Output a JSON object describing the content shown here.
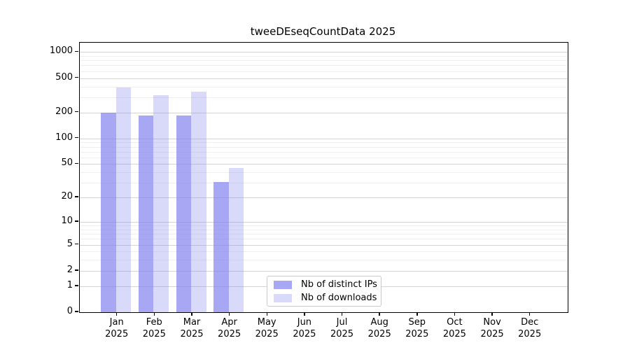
{
  "chart_data": {
    "type": "bar",
    "title": "tweeDEseqCountData 2025",
    "xlabel": "",
    "ylabel": "",
    "categories": [
      "Jan",
      "Feb",
      "Mar",
      "Apr",
      "May",
      "Jun",
      "Jul",
      "Aug",
      "Sep",
      "Oct",
      "Nov",
      "Dec"
    ],
    "x_tick_second_line": "2025",
    "series": [
      {
        "name": "Nb of distinct IPs",
        "color": "#8282ee",
        "fill": "rgba(130,130,238,0.7)",
        "values": [
          200,
          186,
          183,
          31,
          0,
          0,
          0,
          0,
          0,
          0,
          0,
          0
        ]
      },
      {
        "name": "Nb of downloads",
        "color": "#8282ee",
        "fill": "rgba(130,130,238,0.3)",
        "values": [
          390,
          315,
          345,
          45,
          0,
          0,
          0,
          0,
          0,
          0,
          0,
          0
        ]
      }
    ],
    "yscale": "log10(1+x)",
    "ylim": [
      0,
      1280
    ],
    "y_ticks": [
      0,
      1,
      2,
      5,
      10,
      20,
      50,
      100,
      200,
      500,
      1000
    ],
    "y_tick_labels": [
      "0",
      "1",
      "2",
      "5",
      "10",
      "20",
      "50",
      "100",
      "200",
      "500",
      "1000"
    ],
    "y_minor_gridlines": [
      3,
      4,
      6,
      7,
      8,
      9,
      30,
      40,
      60,
      70,
      80,
      90,
      300,
      400,
      600,
      700,
      800,
      900
    ],
    "grid": "horizontal",
    "legend_position": "inside-bottom-center",
    "style": {
      "axis_color": "#000000",
      "major_grid_color": "#d4d4d4",
      "minor_grid_color": "#efefef",
      "background": "#ffffff"
    }
  },
  "legend": {
    "items": [
      {
        "label": "Nb of distinct IPs",
        "fill": "rgba(130,130,238,0.7)"
      },
      {
        "label": "Nb of downloads",
        "fill": "rgba(130,130,238,0.3)"
      }
    ]
  }
}
